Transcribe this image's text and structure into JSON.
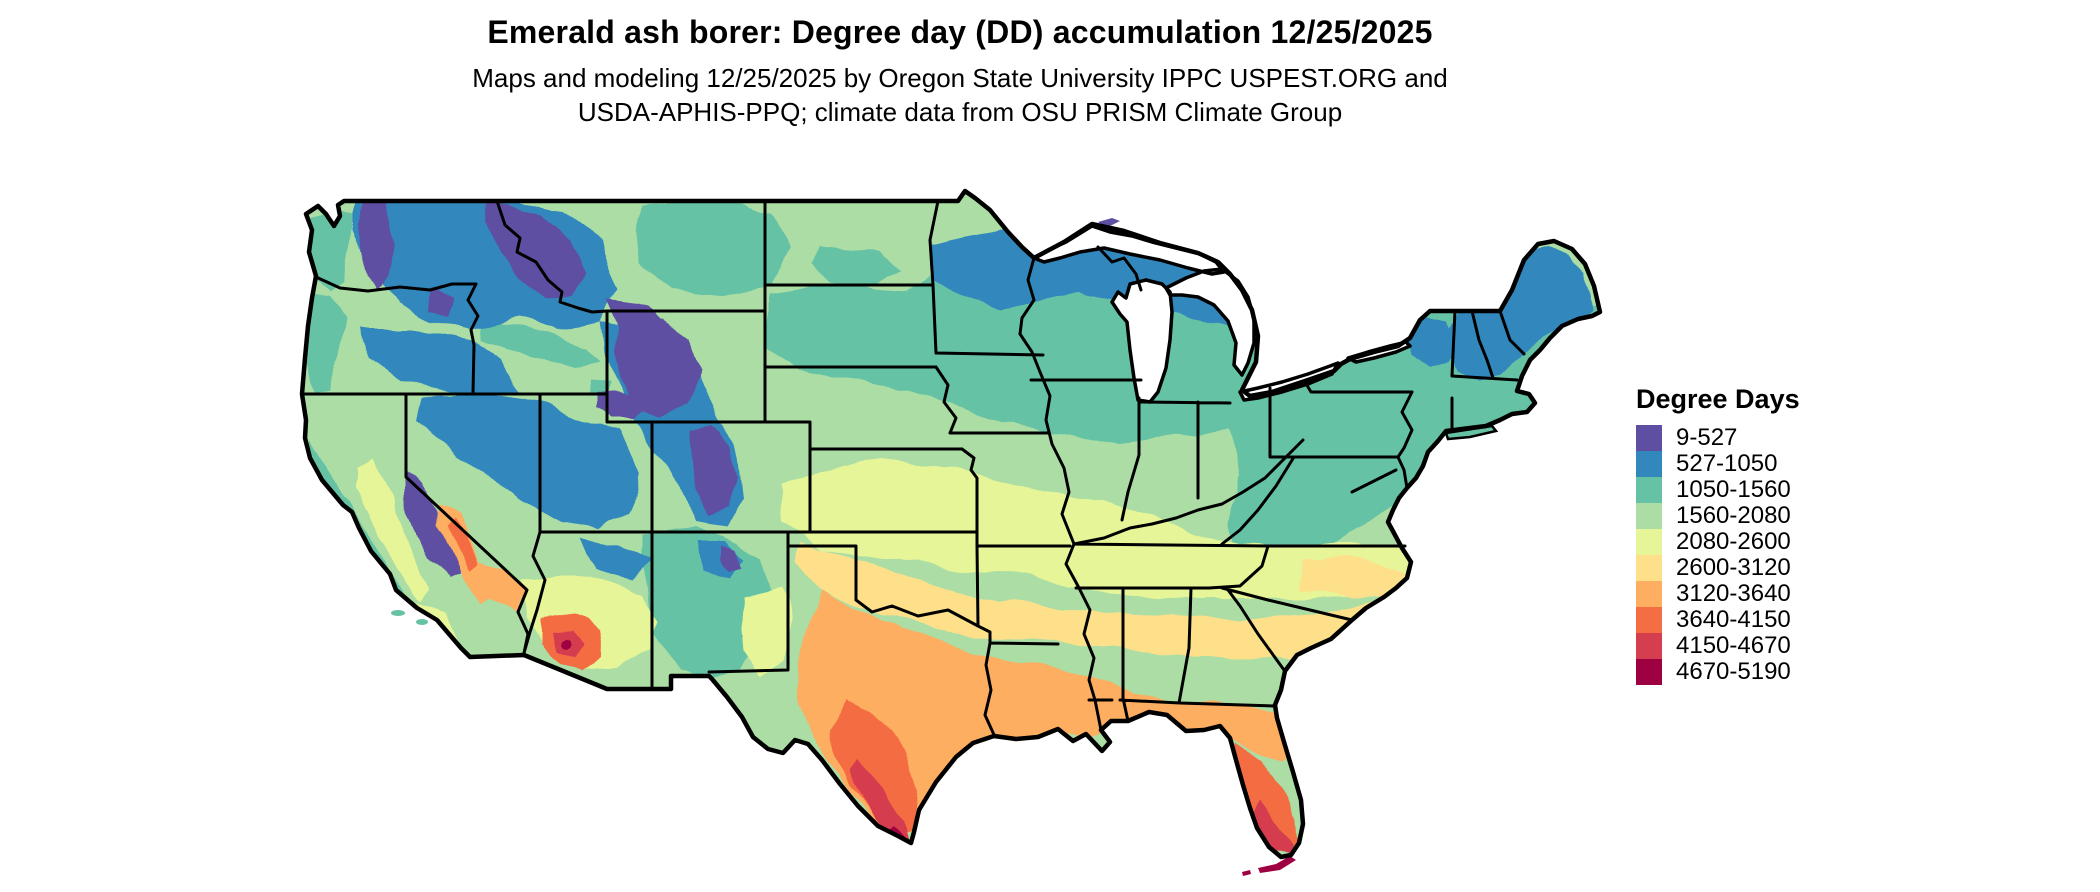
{
  "header": {
    "title": "Emerald ash borer: Degree day (DD) accumulation 12/25/2025",
    "subtitle_line1": "Maps and modeling 12/25/2025 by Oregon State University IPPC USPEST.ORG and",
    "subtitle_line2": "USDA-APHIS-PPQ; climate data from OSU PRISM Climate Group"
  },
  "legend": {
    "title": "Degree Days",
    "items": [
      {
        "label": "9-527",
        "color": "#5e4fa2"
      },
      {
        "label": "527-1050",
        "color": "#3288bd"
      },
      {
        "label": "1050-1560",
        "color": "#66c2a5"
      },
      {
        "label": "1560-2080",
        "color": "#abdda4"
      },
      {
        "label": "2080-2600",
        "color": "#e6f598"
      },
      {
        "label": "2600-3120",
        "color": "#fee08b"
      },
      {
        "label": "3120-3640",
        "color": "#fdae61"
      },
      {
        "label": "3640-4150",
        "color": "#f46d43"
      },
      {
        "label": "4150-4670",
        "color": "#d53e4f"
      },
      {
        "label": "4670-5190",
        "color": "#9e0142"
      }
    ]
  },
  "map": {
    "region": "Continental United States",
    "boundary_color": "#000000",
    "water_color": "#ffffff"
  }
}
